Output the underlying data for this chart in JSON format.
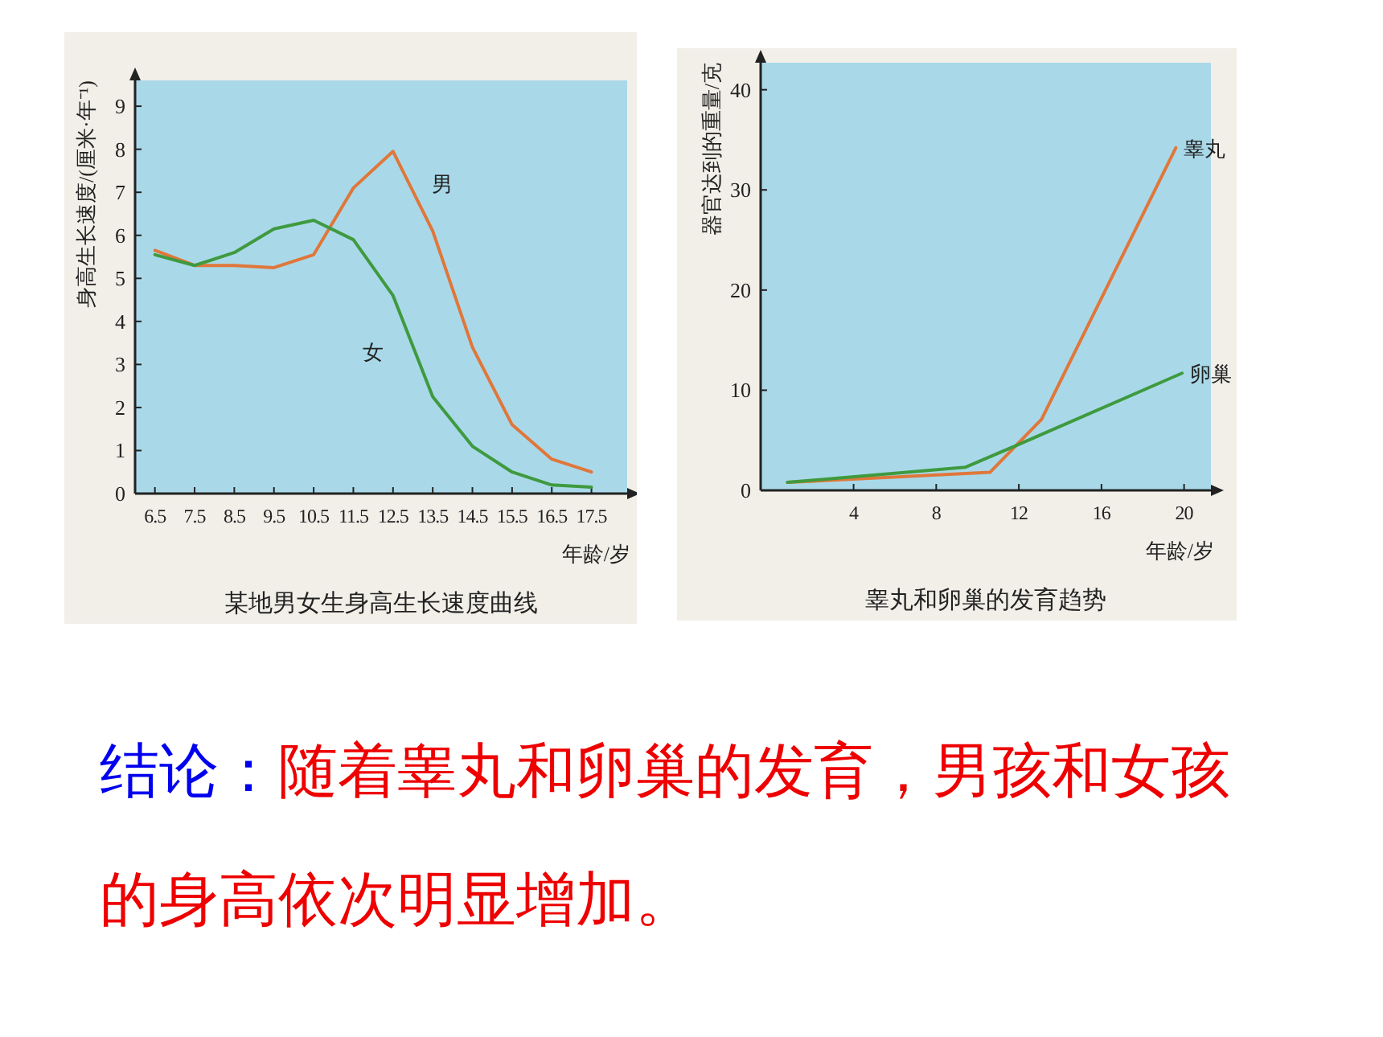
{
  "chart_data": [
    {
      "type": "line",
      "title": "某地男女生身高生长速度曲线",
      "xlabel": "年龄/岁",
      "ylabel": "身高生长速度/(厘米·年⁻¹)",
      "xlim": [
        6,
        18.4
      ],
      "ylim": [
        0,
        9.6
      ],
      "xticks": [
        6.5,
        7.5,
        8.5,
        9.5,
        10.5,
        11.5,
        12.5,
        13.5,
        14.5,
        15.5,
        16.5,
        17.5
      ],
      "yticks": [
        0,
        1,
        2,
        3,
        4,
        5,
        6,
        7,
        8,
        9
      ],
      "x": [
        6.5,
        7.5,
        8.5,
        9.5,
        10.5,
        11.5,
        12.5,
        13.5,
        14.5,
        15.5,
        16.5,
        17.5
      ],
      "series": [
        {
          "name": "男",
          "color": "#e0773a",
          "values": [
            5.65,
            5.3,
            5.3,
            5.25,
            5.55,
            7.1,
            7.95,
            6.1,
            3.4,
            1.6,
            0.8,
            0.5
          ]
        },
        {
          "name": "女",
          "color": "#3f9a3f",
          "values": [
            5.55,
            5.3,
            5.6,
            6.15,
            6.35,
            5.9,
            4.6,
            2.25,
            1.1,
            0.5,
            0.2,
            0.15
          ]
        }
      ]
    },
    {
      "type": "line",
      "title": "睾丸和卵巢的发育趋势",
      "xlabel": "年龄/岁",
      "ylabel": "器官达到的重量/克",
      "xlim": [
        -0.5,
        21.3
      ],
      "ylim": [
        0,
        42.7
      ],
      "xticks": [
        4,
        8,
        12,
        16,
        20
      ],
      "yticks": [
        0,
        10,
        20,
        30,
        40
      ],
      "series": [
        {
          "name": "睾丸",
          "color": "#e0773a",
          "x": [
            0.8,
            10.6,
            13.1,
            19.6
          ],
          "values": [
            0.8,
            1.8,
            7.1,
            34.2
          ]
        },
        {
          "name": "卵巢",
          "color": "#3f9a3f",
          "x": [
            0.8,
            9.4,
            11.9,
            19.9
          ],
          "values": [
            0.8,
            2.3,
            4.5,
            11.7
          ]
        }
      ]
    },
    {
      "type": "other",
      "annotations": [
        "结论：",
        "随着睾丸和卵巢的发育，男孩和女孩的身高依次明显增加。"
      ]
    }
  ]
}
